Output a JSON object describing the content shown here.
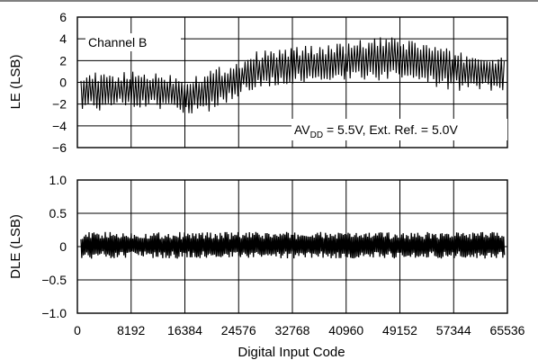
{
  "chart_data": [
    {
      "type": "line",
      "ylabel": "LE (LSB)",
      "xlabel": "",
      "xlim": [
        0,
        65536
      ],
      "ylim": [
        -6,
        6
      ],
      "x_ticks": [
        0,
        8192,
        16384,
        24576,
        32768,
        40960,
        49152,
        57344,
        65536
      ],
      "y_ticks": [
        6,
        4,
        2,
        0,
        -2,
        -4,
        -6
      ],
      "y_tick_labels": [
        "6",
        "4",
        "2",
        "0",
        "−2",
        "−4",
        "−6"
      ],
      "grid": true,
      "annotations": {
        "channel_label": "Channel B",
        "condition_prefix": "AV",
        "condition_subscript": "DD",
        "condition_suffix": " = 5.5V, Ext. Ref. = 5.0V"
      },
      "series": [
        {
          "style": "dense oscillating band (min/max envelope)",
          "x": [
            0,
            4096,
            8192,
            12288,
            16384,
            18432,
            20480,
            24576,
            26624,
            28672,
            32768,
            36864,
            40960,
            45056,
            49152,
            53248,
            57344,
            61440,
            65536
          ],
          "y_upper": [
            1.2,
            0.8,
            1.0,
            1.0,
            0.7,
            0.9,
            1.3,
            2.0,
            2.8,
            3.0,
            3.3,
            3.5,
            3.6,
            4.2,
            4.1,
            3.8,
            2.9,
            2.6,
            2.3
          ],
          "y_lower": [
            -2.5,
            -2.6,
            -2.3,
            -2.5,
            -3.4,
            -3.0,
            -2.7,
            -1.3,
            -0.7,
            -0.6,
            -0.2,
            0.0,
            0.1,
            0.0,
            0.2,
            -0.3,
            -0.8,
            -0.8,
            -1.0
          ]
        }
      ]
    },
    {
      "type": "line",
      "ylabel": "DLE (LSB)",
      "xlabel": "Digital Input Code",
      "xlim": [
        0,
        65536
      ],
      "ylim": [
        -1.0,
        1.0
      ],
      "x_ticks": [
        0,
        8192,
        16384,
        24576,
        32768,
        40960,
        49152,
        57344,
        65536
      ],
      "x_tick_labels": [
        "0",
        "8192",
        "16384",
        "24576",
        "32768",
        "40960",
        "49152",
        "57344",
        "65536"
      ],
      "y_ticks": [
        1.0,
        0.5,
        0,
        -0.5,
        -1.0
      ],
      "y_tick_labels": [
        "1.0",
        "0.5",
        "0",
        "−0.5",
        "−1.0"
      ],
      "grid": true,
      "series": [
        {
          "style": "dense oscillating band (min/max envelope)",
          "x": [
            0,
            65536
          ],
          "y_upper": [
            0.22,
            0.22
          ],
          "y_lower": [
            -0.18,
            -0.18
          ]
        }
      ]
    }
  ]
}
